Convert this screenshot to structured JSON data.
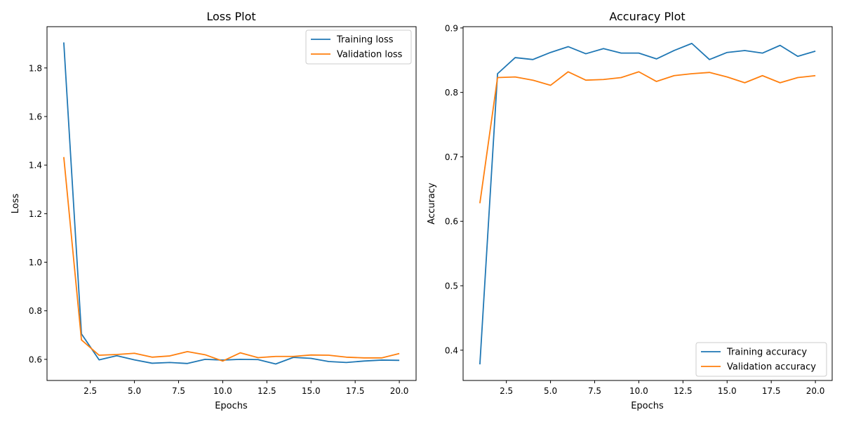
{
  "colors": {
    "training": "#1f77b4",
    "validation": "#ff7f0e",
    "axis": "#000000",
    "legend_border": "#cccccc"
  },
  "chart_data": [
    {
      "type": "line",
      "title": "Loss Plot",
      "xlabel": "Epochs",
      "ylabel": "Loss",
      "xlim": [
        0.05,
        20.95
      ],
      "ylim": [
        0.513,
        1.97
      ],
      "xticks": [
        2.5,
        5.0,
        7.5,
        10.0,
        12.5,
        15.0,
        17.5,
        20.0
      ],
      "xtick_labels": [
        "2.5",
        "5.0",
        "7.5",
        "10.0",
        "12.5",
        "15.0",
        "17.5",
        "20.0"
      ],
      "yticks": [
        0.6,
        0.8,
        1.0,
        1.2,
        1.4,
        1.6,
        1.8
      ],
      "ytick_labels": [
        "0.6",
        "0.8",
        "1.0",
        "1.2",
        "1.4",
        "1.6",
        "1.8"
      ],
      "grid": false,
      "legend_position": "upper right",
      "x": [
        1,
        2,
        3,
        4,
        5,
        6,
        7,
        8,
        9,
        10,
        11,
        12,
        13,
        14,
        15,
        16,
        17,
        18,
        19,
        20
      ],
      "series": [
        {
          "name": "Training loss",
          "color": "#1f77b4",
          "values": [
            1.905,
            0.705,
            0.598,
            0.615,
            0.598,
            0.584,
            0.587,
            0.583,
            0.6,
            0.597,
            0.6,
            0.599,
            0.581,
            0.608,
            0.604,
            0.591,
            0.587,
            0.593,
            0.597,
            0.596
          ]
        },
        {
          "name": "Validation loss",
          "color": "#ff7f0e",
          "values": [
            1.433,
            0.68,
            0.617,
            0.62,
            0.625,
            0.609,
            0.614,
            0.632,
            0.619,
            0.593,
            0.627,
            0.607,
            0.612,
            0.612,
            0.618,
            0.617,
            0.609,
            0.606,
            0.606,
            0.624
          ]
        }
      ]
    },
    {
      "type": "line",
      "title": "Accuracy Plot",
      "xlabel": "Epochs",
      "ylabel": "Accuracy",
      "xlim": [
        0.05,
        20.95
      ],
      "ylim": [
        0.353,
        0.902
      ],
      "xticks": [
        2.5,
        5.0,
        7.5,
        10.0,
        12.5,
        15.0,
        17.5,
        20.0
      ],
      "xtick_labels": [
        "2.5",
        "5.0",
        "7.5",
        "10.0",
        "12.5",
        "15.0",
        "17.5",
        "20.0"
      ],
      "yticks": [
        0.4,
        0.5,
        0.6,
        0.7,
        0.8,
        0.9
      ],
      "ytick_labels": [
        "0.4",
        "0.5",
        "0.6",
        "0.7",
        "0.8",
        "0.9"
      ],
      "grid": false,
      "legend_position": "lower right",
      "x": [
        1,
        2,
        3,
        4,
        5,
        6,
        7,
        8,
        9,
        10,
        11,
        12,
        13,
        14,
        15,
        16,
        17,
        18,
        19,
        20
      ],
      "series": [
        {
          "name": "Training accuracy",
          "color": "#1f77b4",
          "values": [
            0.378,
            0.829,
            0.854,
            0.851,
            0.862,
            0.871,
            0.86,
            0.868,
            0.861,
            0.861,
            0.852,
            0.865,
            0.876,
            0.851,
            0.862,
            0.865,
            0.861,
            0.873,
            0.856,
            0.864
          ]
        },
        {
          "name": "Validation accuracy",
          "color": "#ff7f0e",
          "values": [
            0.628,
            0.823,
            0.824,
            0.819,
            0.811,
            0.832,
            0.819,
            0.82,
            0.823,
            0.832,
            0.817,
            0.826,
            0.829,
            0.831,
            0.824,
            0.815,
            0.826,
            0.815,
            0.823,
            0.826
          ]
        }
      ]
    }
  ]
}
